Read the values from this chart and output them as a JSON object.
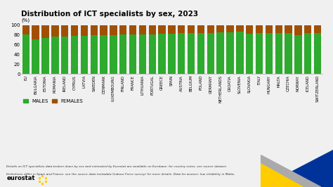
{
  "title": "Distribution of ICT specialists by sex, 2023",
  "ylabel": "(%)",
  "background_color": "#f0f0f0",
  "male_color": "#2eaa2e",
  "female_color": "#a05000",
  "categories": [
    "EU",
    "BULGARIA",
    "ESTONIA",
    "ROMANIA",
    "IRELAND",
    "CYPRUS",
    "LATVIA",
    "SWEDEN",
    "DENMARK",
    "LUXEMBOURG",
    "FINLAND",
    "FRANCE",
    "LITHUANIA",
    "PORTUGAL",
    "GREECE",
    "SPAIN",
    "AUSTRIA",
    "BELGIUM",
    "POLAND",
    "GERMANY",
    "NETHERLANDS",
    "CROATIA",
    "SLOVENIA",
    "SLOVAKIA",
    "ITALY",
    "HUNGARY",
    "MALTA",
    "CZECHIA",
    "NORWAY",
    "ICELAND",
    "SWITZERLAND"
  ],
  "males": [
    81,
    71,
    74,
    76,
    77,
    78,
    78,
    80,
    80,
    80,
    81,
    81,
    81,
    81,
    82,
    82,
    83,
    83,
    83,
    84,
    85,
    85,
    86,
    82,
    84,
    84,
    84,
    84,
    79,
    83,
    84
  ],
  "footnote1": "Details on ICT specialists data broken down by sex and estimated by Eurostat are available on Eurobase: for country notes, see source dataset.",
  "footnote2": "Definitions differ in Spain and France: see the source data metadata (Labour Force survey) for more details. Data for women: low reliability in Malta."
}
